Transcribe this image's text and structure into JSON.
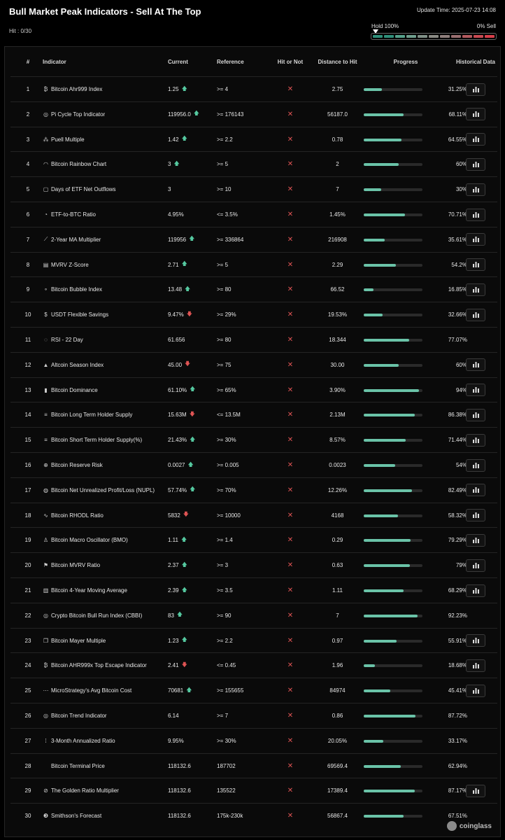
{
  "title": "Bull Market Peak Indicators - Sell At The Top",
  "hit_label": "Hit : 0/30",
  "update_time": "Update Time: 2025-07-23 14:08",
  "gauge": {
    "left_label": "Hold 100%",
    "right_label": "0% Sell",
    "segment_colors": [
      "#2f8f7a",
      "#2f8f7a",
      "#55a08a",
      "#6f9e8d",
      "#7f8f86",
      "#8a8a84",
      "#8f7f7c",
      "#9a6f70",
      "#b25a5e",
      "#c84a52",
      "#d83f4a"
    ]
  },
  "columns": {
    "num": "#",
    "indicator": "Indicator",
    "current": "Current",
    "reference": "Reference",
    "hit": "Hit or Not",
    "distance": "Distance to Hit",
    "progress": "Progress",
    "historical": "Historical Data"
  },
  "colors": {
    "accent": "#6ac3a8",
    "up": "#55c9a0",
    "down": "#e05454"
  },
  "rows": [
    {
      "num": "1",
      "icon": "₿",
      "name": "Bitcoin Ahr999 Index",
      "current": "1.25",
      "trend": "up",
      "reference": ">= 4",
      "hit": "✕",
      "distance": "2.75",
      "progress": 31.25,
      "progress_text": "31.25%",
      "history": true
    },
    {
      "num": "2",
      "icon": "◎",
      "name": "Pi Cycle Top Indicator",
      "current": "119956.0",
      "trend": "up",
      "reference": ">= 176143",
      "hit": "✕",
      "distance": "56187.0",
      "progress": 68.11,
      "progress_text": "68.11%",
      "history": true
    },
    {
      "num": "3",
      "icon": "⁂",
      "name": "Puell Multiple",
      "current": "1.42",
      "trend": "up",
      "reference": ">= 2.2",
      "hit": "✕",
      "distance": "0.78",
      "progress": 64.55,
      "progress_text": "64.55%",
      "history": true
    },
    {
      "num": "4",
      "icon": "◠",
      "name": "Bitcoin Rainbow Chart",
      "current": "3",
      "trend": "up",
      "reference": ">= 5",
      "hit": "✕",
      "distance": "2",
      "progress": 60,
      "progress_text": "60%",
      "history": true
    },
    {
      "num": "5",
      "icon": "▢",
      "name": "Days of ETF Net Outflows",
      "current": "3",
      "trend": "",
      "reference": ">= 10",
      "hit": "✕",
      "distance": "7",
      "progress": 30,
      "progress_text": "30%",
      "history": true
    },
    {
      "num": "6",
      "icon": "◔",
      "name": "ETF-to-BTC Ratio",
      "current": "4.95%",
      "trend": "",
      "reference": "<= 3.5%",
      "hit": "✕",
      "distance": "1.45%",
      "progress": 70.71,
      "progress_text": "70.71%",
      "history": true
    },
    {
      "num": "7",
      "icon": "⟋",
      "name": "2-Year MA Multiplier",
      "current": "119956",
      "trend": "up",
      "reference": ">= 336864",
      "hit": "✕",
      "distance": "216908",
      "progress": 35.61,
      "progress_text": "35.61%",
      "history": true
    },
    {
      "num": "8",
      "icon": "▤",
      "name": "MVRV Z-Score",
      "current": "2.71",
      "trend": "up",
      "reference": ">= 5",
      "hit": "✕",
      "distance": "2.29",
      "progress": 54.2,
      "progress_text": "54.2%",
      "history": true
    },
    {
      "num": "9",
      "icon": "∘",
      "name": "Bitcoin Bubble Index",
      "current": "13.48",
      "trend": "up",
      "reference": ">= 80",
      "hit": "✕",
      "distance": "66.52",
      "progress": 16.85,
      "progress_text": "16.85%",
      "history": true
    },
    {
      "num": "10",
      "icon": "$",
      "name": "USDT Flexible Savings",
      "current": "9.47%",
      "trend": "down",
      "reference": ">= 29%",
      "hit": "✕",
      "distance": "19.53%",
      "progress": 32.66,
      "progress_text": "32.66%",
      "history": true
    },
    {
      "num": "11",
      "icon": "◌",
      "name": "RSI - 22 Day",
      "current": "61.656",
      "trend": "",
      "reference": ">= 80",
      "hit": "✕",
      "distance": "18.344",
      "progress": 77.07,
      "progress_text": "77.07%",
      "history": false
    },
    {
      "num": "12",
      "icon": "▲",
      "name": "Altcoin Season Index",
      "current": "45.00",
      "trend": "down",
      "reference": ">= 75",
      "hit": "✕",
      "distance": "30.00",
      "progress": 60,
      "progress_text": "60%",
      "history": true
    },
    {
      "num": "13",
      "icon": "▮",
      "name": "Bitcoin Dominance",
      "current": "61.10%",
      "trend": "up",
      "reference": ">= 65%",
      "hit": "✕",
      "distance": "3.90%",
      "progress": 94,
      "progress_text": "94%",
      "history": true
    },
    {
      "num": "14",
      "icon": "≡",
      "name": "Bitcoin Long Term Holder Supply",
      "current": "15.63M",
      "trend": "down",
      "reference": "<= 13.5M",
      "hit": "✕",
      "distance": "2.13M",
      "progress": 86.38,
      "progress_text": "86.38%",
      "history": true
    },
    {
      "num": "15",
      "icon": "≡",
      "name": "Bitcoin Short Term Holder Supply(%)",
      "current": "21.43%",
      "trend": "up",
      "reference": ">= 30%",
      "hit": "✕",
      "distance": "8.57%",
      "progress": 71.44,
      "progress_text": "71.44%",
      "history": true
    },
    {
      "num": "16",
      "icon": "⊕",
      "name": "Bitcoin Reserve Risk",
      "current": "0.0027",
      "trend": "up",
      "reference": ">= 0.005",
      "hit": "✕",
      "distance": "0.0023",
      "progress": 54,
      "progress_text": "54%",
      "history": true
    },
    {
      "num": "17",
      "icon": "◍",
      "name": "Bitcoin Net Unrealized Profit/Loss (NUPL)",
      "current": "57.74%",
      "trend": "up",
      "reference": ">= 70%",
      "hit": "✕",
      "distance": "12.26%",
      "progress": 82.49,
      "progress_text": "82.49%",
      "history": true
    },
    {
      "num": "18",
      "icon": "∿",
      "name": "Bitcoin RHODL Ratio",
      "current": "5832",
      "trend": "down",
      "reference": ">= 10000",
      "hit": "✕",
      "distance": "4168",
      "progress": 58.32,
      "progress_text": "58.32%",
      "history": true
    },
    {
      "num": "19",
      "icon": "♙",
      "name": "Bitcoin Macro Oscillator (BMO)",
      "current": "1.11",
      "trend": "up",
      "reference": ">= 1.4",
      "hit": "✕",
      "distance": "0.29",
      "progress": 79.29,
      "progress_text": "79.29%",
      "history": true
    },
    {
      "num": "20",
      "icon": "⚑",
      "name": "Bitcoin MVRV Ratio",
      "current": "2.37",
      "trend": "up",
      "reference": ">= 3",
      "hit": "✕",
      "distance": "0.63",
      "progress": 79,
      "progress_text": "79%",
      "history": true
    },
    {
      "num": "21",
      "icon": "▥",
      "name": "Bitcoin 4-Year Moving Average",
      "current": "2.39",
      "trend": "up",
      "reference": ">= 3.5",
      "hit": "✕",
      "distance": "1.11",
      "progress": 68.29,
      "progress_text": "68.29%",
      "history": true
    },
    {
      "num": "22",
      "icon": "◎",
      "name": "Crypto Bitcoin Bull Run Index (CBBI)",
      "current": "83",
      "trend": "up",
      "reference": ">= 90",
      "hit": "✕",
      "distance": "7",
      "progress": 92.23,
      "progress_text": "92.23%",
      "history": false
    },
    {
      "num": "23",
      "icon": "❐",
      "name": "Bitcoin Mayer Multiple",
      "current": "1.23",
      "trend": "up",
      "reference": ">= 2.2",
      "hit": "✕",
      "distance": "0.97",
      "progress": 55.91,
      "progress_text": "55.91%",
      "history": true
    },
    {
      "num": "24",
      "icon": "₿",
      "name": "Bitcoin AHR999x Top Escape Indicator",
      "current": "2.41",
      "trend": "down",
      "reference": "<= 0.45",
      "hit": "✕",
      "distance": "1.96",
      "progress": 18.68,
      "progress_text": "18.68%",
      "history": true
    },
    {
      "num": "25",
      "icon": "⋯",
      "name": "MicroStrategy's Avg Bitcoin Cost",
      "current": "70681",
      "trend": "up",
      "reference": ">= 155655",
      "hit": "✕",
      "distance": "84974",
      "progress": 45.41,
      "progress_text": "45.41%",
      "history": true
    },
    {
      "num": "26",
      "icon": "◎",
      "name": "Bitcoin Trend Indicator",
      "current": "6.14",
      "trend": "",
      "reference": ">= 7",
      "hit": "✕",
      "distance": "0.86",
      "progress": 87.72,
      "progress_text": "87.72%",
      "history": false
    },
    {
      "num": "27",
      "icon": "⁞",
      "name": "3-Month Annualized Ratio",
      "current": "9.95%",
      "trend": "",
      "reference": ">= 30%",
      "hit": "✕",
      "distance": "20.05%",
      "progress": 33.17,
      "progress_text": "33.17%",
      "history": false
    },
    {
      "num": "28",
      "icon": "",
      "name": "Bitcoin Terminal Price",
      "current": "118132.6",
      "trend": "",
      "reference": "187702",
      "hit": "✕",
      "distance": "69569.4",
      "progress": 62.94,
      "progress_text": "62.94%",
      "history": false
    },
    {
      "num": "29",
      "icon": "⊘",
      "name": "The Golden Ratio Multiplier",
      "current": "118132.6",
      "trend": "",
      "reference": "135522",
      "hit": "✕",
      "distance": "17389.4",
      "progress": 87.17,
      "progress_text": "87.17%",
      "history": true
    },
    {
      "num": "30",
      "icon": "❸",
      "name": "Smithson's Forecast",
      "current": "118132.6",
      "trend": "",
      "reference": "175k-230k",
      "hit": "✕",
      "distance": "56867.4",
      "progress": 67.51,
      "progress_text": "67.51%",
      "history": false
    }
  ],
  "watermark": "coinglass"
}
